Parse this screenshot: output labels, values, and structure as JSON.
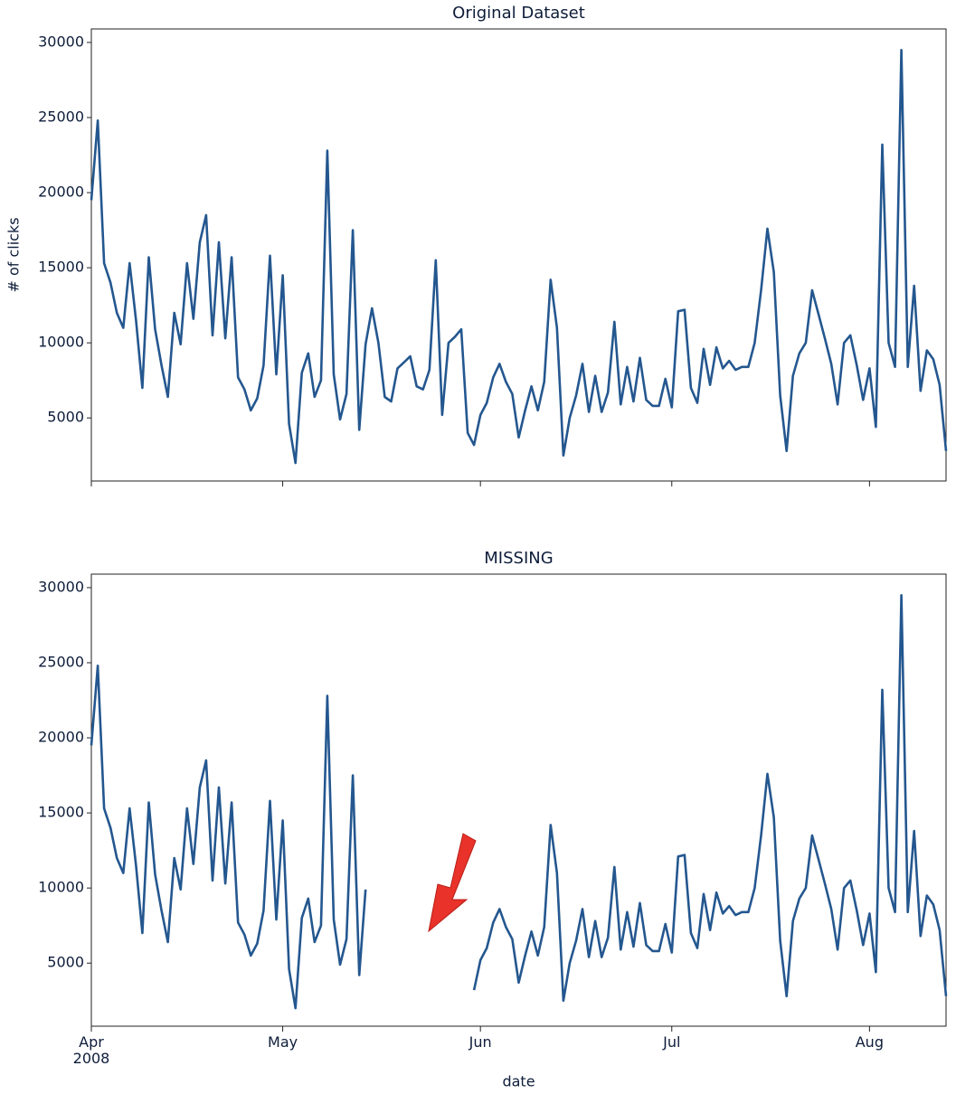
{
  "chart_data": [
    {
      "type": "line",
      "title": "Original Dataset",
      "y_label": "# of clicks",
      "xlim": [
        0,
        134
      ],
      "xticks": [
        0,
        30,
        61,
        91,
        122
      ],
      "ylim": [
        800,
        30900
      ],
      "yticks": [
        5000,
        10000,
        15000,
        20000,
        25000,
        30000
      ],
      "series": [
        {
          "name": "clicks",
          "color": "#24578f",
          "values": [
            19500,
            24800,
            15300,
            14000,
            12000,
            11000,
            15300,
            11500,
            7000,
            15700,
            10900,
            8500,
            6400,
            12000,
            9900,
            15300,
            11600,
            16700,
            18500,
            10500,
            16700,
            10300,
            15700,
            7700,
            6900,
            5500,
            6300,
            8500,
            15800,
            7900,
            14500,
            4600,
            2000,
            8000,
            9300,
            6400,
            7500,
            22800,
            7900,
            4900,
            6600,
            17500,
            4200,
            9900,
            12300,
            10000,
            6400,
            6100,
            8300,
            8700,
            9100,
            7100,
            6900,
            8200,
            15500,
            5200,
            10000,
            10400,
            10900,
            4000,
            3200,
            5200,
            6000,
            7700,
            8600,
            7400,
            6600,
            3700,
            5500,
            7100,
            5500,
            7400,
            14200,
            11000,
            2500,
            5000,
            6500,
            8600,
            5400,
            7800,
            5400,
            6700,
            11400,
            5900,
            8400,
            6100,
            9000,
            6200,
            5800,
            5800,
            7600,
            5700,
            12100,
            12200,
            7000,
            6000,
            9600,
            7200,
            9700,
            8300,
            8800,
            8200,
            8400,
            8400,
            10000,
            13500,
            17600,
            14700,
            6500,
            2800,
            7800,
            9300,
            10000,
            13500,
            11900,
            10300,
            8600,
            5900,
            10000,
            10500,
            8500,
            6200,
            8300,
            4400,
            23200,
            10000,
            8400,
            29500,
            8400,
            13800,
            6800,
            9500,
            8900,
            7200,
            2800
          ]
        }
      ]
    },
    {
      "type": "line",
      "title": "MISSING",
      "x_label": "date",
      "xlim": [
        0,
        134
      ],
      "xticks": [
        {
          "value": 0,
          "label": "Apr\n2008"
        },
        {
          "value": 30,
          "label": "May"
        },
        {
          "value": 61,
          "label": "Jun"
        },
        {
          "value": 91,
          "label": "Jul"
        },
        {
          "value": 122,
          "label": "Aug"
        }
      ],
      "ylim": [
        800,
        30900
      ],
      "yticks": [
        5000,
        10000,
        15000,
        20000,
        25000,
        30000
      ],
      "series": [
        {
          "name": "clicks",
          "color": "#24578f",
          "values": [
            19500,
            24800,
            15300,
            14000,
            12000,
            11000,
            15300,
            11500,
            7000,
            15700,
            10900,
            8500,
            6400,
            12000,
            9900,
            15300,
            11600,
            16700,
            18500,
            10500,
            16700,
            10300,
            15700,
            7700,
            6900,
            5500,
            6300,
            8500,
            15800,
            7900,
            14500,
            4600,
            2000,
            8000,
            9300,
            6400,
            7500,
            22800,
            7900,
            4900,
            6600,
            17500,
            4200,
            9900,
            null,
            null,
            null,
            null,
            null,
            null,
            null,
            null,
            null,
            null,
            null,
            null,
            null,
            null,
            null,
            null,
            3200,
            5200,
            6000,
            7700,
            8600,
            7400,
            6600,
            3700,
            5500,
            7100,
            5500,
            7400,
            14200,
            11000,
            2500,
            5000,
            6500,
            8600,
            5400,
            7800,
            5400,
            6700,
            11400,
            5900,
            8400,
            6100,
            9000,
            6200,
            5800,
            5800,
            7600,
            5700,
            12100,
            12200,
            7000,
            6000,
            9600,
            7200,
            9700,
            8300,
            8800,
            8200,
            8400,
            8400,
            10000,
            13500,
            17600,
            14700,
            6500,
            2800,
            7800,
            9300,
            10000,
            13500,
            11900,
            10300,
            8600,
            5900,
            10000,
            10500,
            8500,
            6200,
            8300,
            4400,
            23200,
            10000,
            8400,
            29500,
            8400,
            13800,
            6800,
            9500,
            8900,
            7200,
            2800
          ]
        }
      ]
    }
  ]
}
